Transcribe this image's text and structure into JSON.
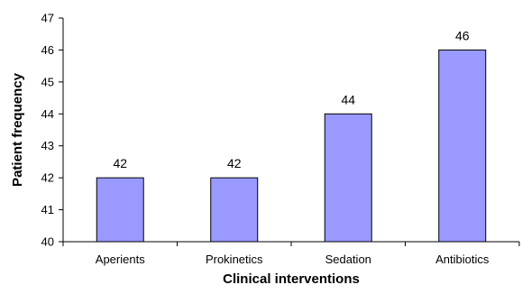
{
  "chart_data": {
    "type": "bar",
    "title": "",
    "xlabel": "Clinical interventions",
    "ylabel": "Patient frequency",
    "categories": [
      "Aperients",
      "Prokinetics",
      "Sedation",
      "Antibiotics"
    ],
    "values": [
      42,
      42,
      44,
      46
    ],
    "data_labels": [
      "42",
      "42",
      "44",
      "46"
    ],
    "ylim": [
      40,
      47
    ],
    "yticks": [
      "40",
      "41",
      "42",
      "43",
      "44",
      "45",
      "46",
      "47"
    ],
    "grid": false,
    "legend": "none",
    "colors": {
      "bar_fill": "#9999ff",
      "bar_stroke": "#000000",
      "axis": "#000000"
    }
  }
}
